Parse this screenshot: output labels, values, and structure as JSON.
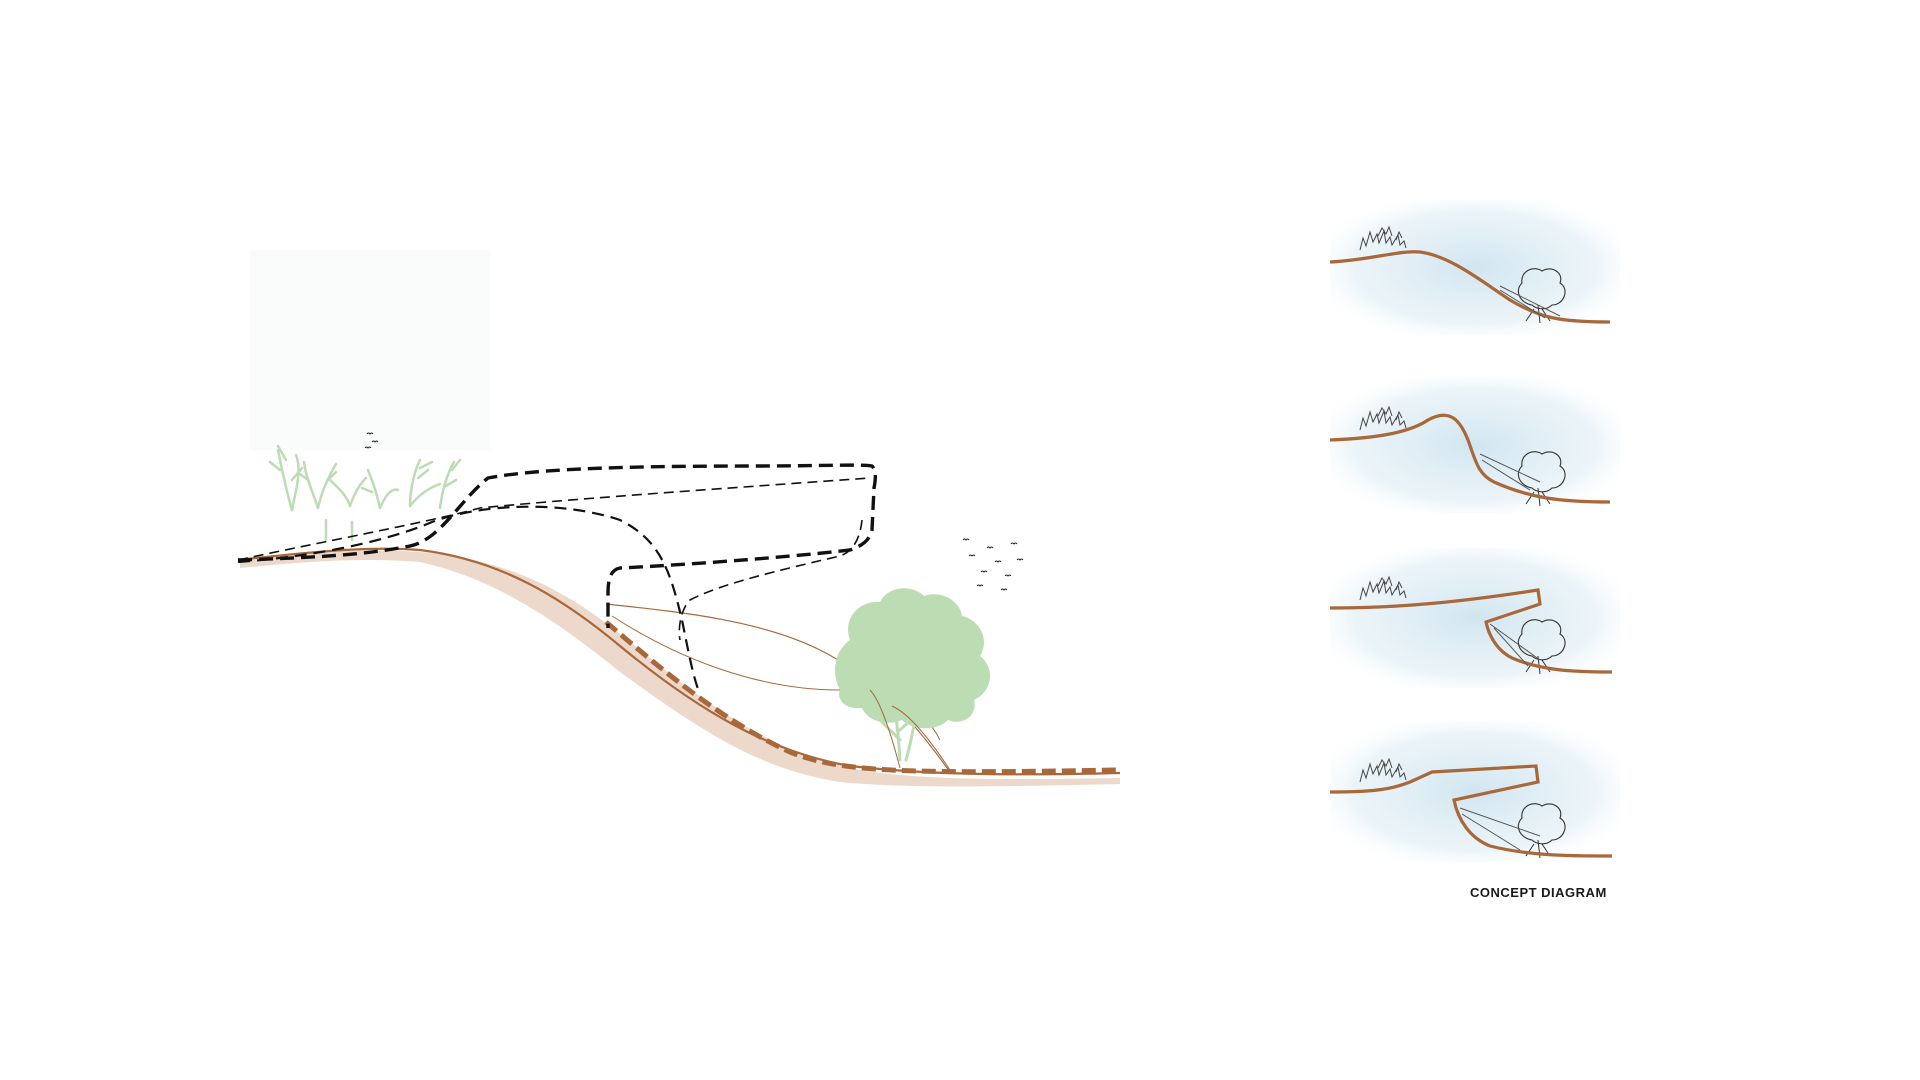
{
  "caption": "CONCEPT DIAGRAM",
  "colors": {
    "ground": "#a8683a",
    "ground_shadow": "#ecd9cc",
    "dash": "#111111",
    "vegetation": "#bcdcb4",
    "sky_wash": "#cfe4ef",
    "sketch": "#3a3a3a"
  },
  "icons": [
    "bird-icon",
    "grass-icon",
    "tree-icon",
    "shrub-icon"
  ],
  "stages": 4
}
